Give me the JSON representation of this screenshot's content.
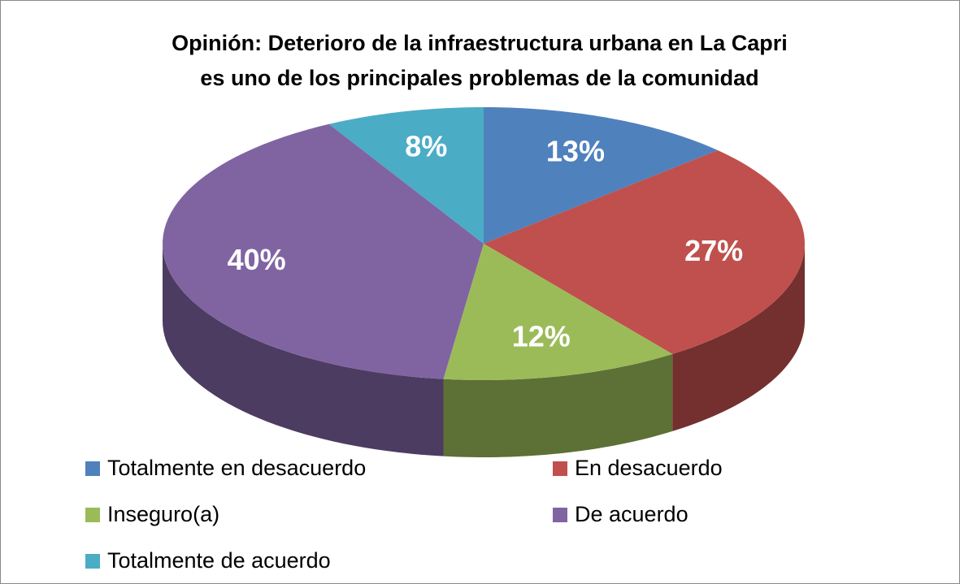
{
  "chart_data": {
    "type": "pie",
    "title": [
      "Opinión: Deterioro de la infraestructura urbana en La Capri",
      "es uno de los principales problemas de la comunidad"
    ],
    "categories": [
      "Totalmente en desacuerdo",
      "En desacuerdo",
      "Inseguro(a)",
      "De acuerdo",
      "Totalmente de acuerdo"
    ],
    "values": [
      13,
      27,
      12,
      40,
      8
    ],
    "value_labels": [
      "13%",
      "27%",
      "12%",
      "40%",
      "8%"
    ],
    "colors": [
      "#4f81bd",
      "#c0504d",
      "#9bbb59",
      "#8064a2",
      "#4bacc6"
    ],
    "legend": "bottom"
  }
}
